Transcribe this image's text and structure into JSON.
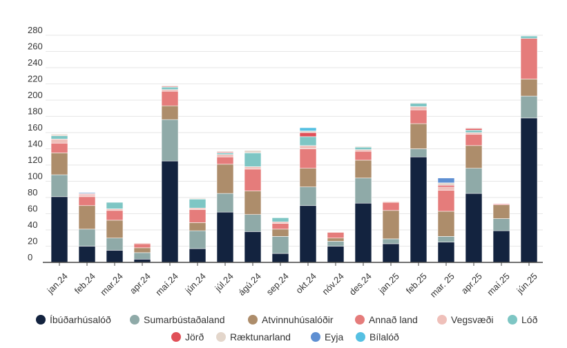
{
  "chart_data": {
    "type": "bar",
    "stacked": true,
    "title": "",
    "xlabel": "",
    "ylabel": "",
    "ylim": [
      0,
      280
    ],
    "yticks": [
      0,
      20,
      40,
      60,
      80,
      100,
      120,
      140,
      160,
      180,
      200,
      220,
      240,
      260,
      280
    ],
    "grid": true,
    "legend_position": "bottom",
    "categories": [
      "jan.24",
      "feb.24",
      "mar.24",
      "apr.24",
      "maí.24",
      "jún.24",
      "júl.24",
      "ágú.24",
      "sep.24",
      "okt.24",
      "nóv.24",
      "des.24",
      "jan.25",
      "feb.25",
      "mar. 25",
      "apr.25",
      "maí.25",
      "jún.25"
    ],
    "series": [
      {
        "name": "Íbúðarhúsalóð",
        "color": "#13233f",
        "values": [
          81,
          20,
          15,
          4,
          125,
          17,
          62,
          38,
          11,
          70,
          20,
          73,
          23,
          130,
          25,
          85,
          39,
          178
        ]
      },
      {
        "name": "Sumarbústaðaland",
        "color": "#8faaa8",
        "values": [
          27,
          21,
          15,
          8,
          51,
          22,
          23,
          21,
          21,
          23,
          6,
          31,
          6,
          10,
          7,
          31,
          15,
          27
        ]
      },
      {
        "name": "Atvinnuhúsalóðir",
        "color": "#ad8d6b",
        "values": [
          27,
          29,
          22,
          6,
          17,
          10,
          36,
          29,
          9,
          23,
          4,
          22,
          35,
          31,
          31,
          28,
          17,
          21
        ]
      },
      {
        "name": "Annað land",
        "color": "#e57c7b",
        "values": [
          12,
          11,
          12,
          5,
          18,
          16,
          9,
          27,
          7,
          24,
          7,
          11,
          10,
          17,
          26,
          14,
          0,
          50
        ]
      },
      {
        "name": "Vegsvæði",
        "color": "#efc0ba",
        "values": [
          5,
          2,
          2,
          1,
          2,
          2,
          3,
          3,
          2,
          4,
          0,
          2,
          1,
          4,
          4,
          2,
          0,
          0
        ]
      },
      {
        "name": "Lóð",
        "color": "#7ec6c4",
        "values": [
          4,
          0,
          8,
          0,
          3,
          11,
          2,
          17,
          5,
          11,
          0,
          3,
          0,
          4,
          0,
          3,
          0,
          3
        ]
      },
      {
        "name": "Jörð",
        "color": "#e04f57",
        "values": [
          0,
          1,
          0,
          0,
          1,
          0,
          1,
          0,
          0,
          5,
          0,
          0,
          0,
          0,
          2,
          2,
          1,
          0
        ]
      },
      {
        "name": "Ræktunarland",
        "color": "#e3d6cb",
        "values": [
          2,
          1,
          0,
          0,
          1,
          1,
          1,
          3,
          0,
          2,
          0,
          1,
          0,
          1,
          3,
          1,
          0,
          0
        ]
      },
      {
        "name": "Eyja",
        "color": "#5e8fd2",
        "values": [
          0,
          1,
          0,
          0,
          0,
          0,
          0,
          0,
          0,
          0,
          0,
          0,
          0,
          0,
          6,
          0,
          0,
          0
        ]
      },
      {
        "name": "Bílalóð",
        "color": "#56c0e2",
        "values": [
          0,
          0,
          0,
          0,
          0,
          0,
          0,
          0,
          0,
          4,
          0,
          0,
          0,
          0,
          0,
          0,
          0,
          0
        ]
      }
    ]
  }
}
